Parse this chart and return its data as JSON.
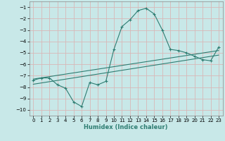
{
  "xlabel": "Humidex (Indice chaleur)",
  "bg_color": "#c8e8e8",
  "grid_color": "#aed4d4",
  "line_color": "#2e7d72",
  "xlim": [
    -0.5,
    23.5
  ],
  "ylim": [
    -10.5,
    -0.5
  ],
  "yticks": [
    -10,
    -9,
    -8,
    -7,
    -6,
    -5,
    -4,
    -3,
    -2,
    -1
  ],
  "xticks": [
    0,
    1,
    2,
    3,
    4,
    5,
    6,
    7,
    8,
    9,
    10,
    11,
    12,
    13,
    14,
    15,
    16,
    17,
    18,
    19,
    20,
    21,
    22,
    23
  ],
  "curve_x": [
    0,
    1,
    2,
    3,
    4,
    5,
    6,
    7,
    8,
    9,
    10,
    11,
    12,
    13,
    14,
    15,
    16,
    17,
    18,
    19,
    20,
    21,
    22,
    23
  ],
  "curve_y": [
    -7.4,
    -7.2,
    -7.2,
    -7.8,
    -8.1,
    -9.3,
    -9.7,
    -7.6,
    -7.8,
    -7.5,
    -4.7,
    -2.7,
    -2.1,
    -1.3,
    -1.1,
    -1.6,
    -3.0,
    -4.7,
    -4.8,
    -5.0,
    -5.3,
    -5.6,
    -5.7,
    -4.5
  ],
  "line1_x": [
    0,
    23
  ],
  "line1_y": [
    -7.3,
    -4.8
  ],
  "line2_x": [
    0,
    23
  ],
  "line2_y": [
    -7.75,
    -5.2
  ]
}
